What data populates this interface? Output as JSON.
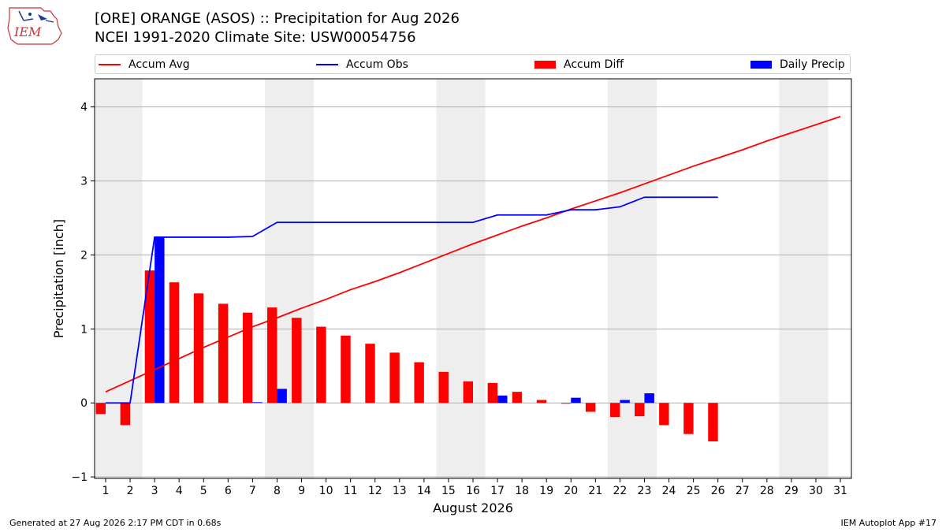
{
  "logo_text": "IEM",
  "title_line1": "[ORE] ORANGE (ASOS) :: Precipitation for Aug 2026",
  "title_line2": "NCEI 1991-2020 Climate Site: USW00054756",
  "footer_left": "Generated at 27 Aug 2026 2:17 PM CDT in 0.68s",
  "footer_right": "IEM Autoplot App #17",
  "colors": {
    "avg": "#ff0000",
    "obs": "#0000ff",
    "diff": "#ff0000",
    "daily": "#0000ff",
    "weekend": "#eeeeee",
    "grid": "#b0b0b0"
  },
  "chart_data": {
    "type": "bar",
    "xlabel": "August 2026",
    "ylabel": "Precipitation [inch]",
    "ylim": [
      -1,
      4
    ],
    "yticks": [
      -1,
      0,
      1,
      2,
      3,
      4
    ],
    "xticks": [
      1,
      2,
      3,
      4,
      5,
      6,
      7,
      8,
      9,
      10,
      11,
      12,
      13,
      14,
      15,
      16,
      17,
      18,
      19,
      20,
      21,
      22,
      23,
      24,
      25,
      26,
      27,
      28,
      29,
      30,
      31
    ],
    "grid": "horizontal",
    "legend_position": "top",
    "weekend_days": [
      1,
      2,
      8,
      9,
      15,
      16,
      22,
      23,
      29,
      30
    ],
    "series": [
      {
        "name": "Accum Avg",
        "kind": "line",
        "days": [
          1,
          2,
          3,
          4,
          5,
          6,
          7,
          8,
          9,
          10,
          11,
          12,
          13,
          14,
          15,
          16,
          17,
          18,
          19,
          20,
          21,
          22,
          23,
          24,
          25,
          26,
          27,
          28,
          29,
          30,
          31
        ],
        "values": [
          0.15,
          0.3,
          0.45,
          0.6,
          0.75,
          0.89,
          1.03,
          1.15,
          1.28,
          1.4,
          1.53,
          1.64,
          1.76,
          1.89,
          2.02,
          2.15,
          2.27,
          2.39,
          2.5,
          2.62,
          2.73,
          2.84,
          2.96,
          3.08,
          3.2,
          3.31,
          3.42,
          3.54,
          3.65,
          3.76,
          3.87
        ]
      },
      {
        "name": "Accum Obs",
        "kind": "line",
        "days": [
          1,
          2,
          3,
          4,
          5,
          6,
          7,
          8,
          9,
          10,
          11,
          12,
          13,
          14,
          15,
          16,
          17,
          18,
          19,
          20,
          21,
          22,
          23,
          24,
          25,
          26
        ],
        "values": [
          0.0,
          0.0,
          2.24,
          2.24,
          2.24,
          2.24,
          2.25,
          2.44,
          2.44,
          2.44,
          2.44,
          2.44,
          2.44,
          2.44,
          2.44,
          2.44,
          2.54,
          2.54,
          2.54,
          2.61,
          2.61,
          2.65,
          2.78,
          2.78,
          2.78,
          2.78
        ]
      },
      {
        "name": "Accum Diff",
        "kind": "bar",
        "days": [
          1,
          2,
          3,
          4,
          5,
          6,
          7,
          8,
          9,
          10,
          11,
          12,
          13,
          14,
          15,
          16,
          17,
          18,
          19,
          20,
          21,
          22,
          23,
          24,
          25,
          26
        ],
        "values": [
          -0.15,
          -0.3,
          1.79,
          1.63,
          1.48,
          1.34,
          1.22,
          1.29,
          1.15,
          1.03,
          0.91,
          0.8,
          0.68,
          0.55,
          0.42,
          0.29,
          0.27,
          0.15,
          0.04,
          -0.01,
          -0.12,
          -0.19,
          -0.18,
          -0.3,
          -0.42,
          -0.52
        ]
      },
      {
        "name": "Daily Precip",
        "kind": "bar",
        "days": [
          1,
          2,
          3,
          4,
          5,
          6,
          7,
          8,
          9,
          10,
          11,
          12,
          13,
          14,
          15,
          16,
          17,
          18,
          19,
          20,
          21,
          22,
          23,
          24,
          25,
          26
        ],
        "values": [
          0,
          0,
          2.24,
          0,
          0,
          0,
          0.01,
          0.19,
          0,
          0,
          0,
          0,
          0,
          0,
          0,
          0,
          0.1,
          0,
          0,
          0.07,
          0,
          0.04,
          0.13,
          0,
          0,
          0
        ]
      }
    ]
  }
}
